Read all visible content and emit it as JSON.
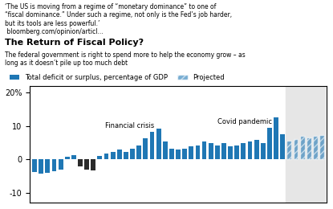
{
  "chart_data": {
    "type": "bar",
    "title": "The Return of Fiscal Policy?",
    "subtitle": "The federal government is right to spend more to help the economy grow – as\nlong as it doesn’t pile up too much debt",
    "categories": [
      null,
      null,
      null,
      null,
      null,
      null,
      null,
      null,
      null,
      null,
      null,
      null,
      null,
      null,
      null,
      null,
      null,
      null,
      null,
      null,
      null,
      null,
      null,
      null,
      null,
      null,
      null,
      null,
      null,
      null,
      null,
      null,
      null,
      null,
      null,
      null,
      null,
      null,
      null,
      null,
      null,
      null,
      null,
      null,
      null
    ],
    "series": [
      {
        "name": "Total deficit or surplus, percentage of GDP",
        "values": [
          -3.8,
          -4.2,
          -4.0,
          -3.6,
          -3.0,
          0.8,
          1.2,
          -2.2,
          -3.0,
          -3.3,
          1.0,
          1.8,
          2.2,
          2.8,
          2.2,
          3.2,
          4.2,
          6.2,
          8.2,
          9.2,
          5.2,
          3.2,
          3.0,
          3.2,
          3.8,
          4.2,
          5.2,
          4.8,
          4.2,
          4.8,
          3.8,
          4.2,
          4.8,
          5.2,
          5.8,
          4.8,
          9.5,
          12.5,
          7.5,
          null,
          null,
          null,
          null,
          null,
          null
        ],
        "colors": [
          "#1f77b4",
          "#1f77b4",
          "#1f77b4",
          "#1f77b4",
          "#1f77b4",
          "#1f77b4",
          "#1f77b4",
          "#2a2a2a",
          "#2a2a2a",
          "#2a2a2a",
          "#1f77b4",
          "#1f77b4",
          "#1f77b4",
          "#1f77b4",
          "#1f77b4",
          "#1f77b4",
          "#1f77b4",
          "#1f77b4",
          "#1f77b4",
          "#1f77b4",
          "#1f77b4",
          "#1f77b4",
          "#1f77b4",
          "#1f77b4",
          "#1f77b4",
          "#1f77b4",
          "#1f77b4",
          "#1f77b4",
          "#1f77b4",
          "#1f77b4",
          "#1f77b4",
          "#1f77b4",
          "#1f77b4",
          "#1f77b4",
          "#1f77b4",
          "#1f77b4",
          "#1f77b4",
          "#1f77b4",
          "#1f77b4",
          null,
          null,
          null,
          null,
          null,
          null
        ]
      },
      {
        "name": "Projected",
        "values": [
          null,
          null,
          null,
          null,
          null,
          null,
          null,
          null,
          null,
          null,
          null,
          null,
          null,
          null,
          null,
          null,
          null,
          null,
          null,
          null,
          null,
          null,
          null,
          null,
          null,
          null,
          null,
          null,
          null,
          null,
          null,
          null,
          null,
          null,
          null,
          null,
          null,
          null,
          null,
          5.5,
          6.0,
          7.0,
          6.5,
          7.0,
          7.2
        ]
      }
    ],
    "ylim": [
      -13,
      22
    ],
    "yticks": [
      -10,
      0,
      10,
      {
        "value": 20,
        "label": "20%"
      }
    ],
    "grid": false,
    "legend": "upper left",
    "tick_labels": "y",
    "annotations": [
      {
        "text": "‘The US is moving from a regime of “monetary dominance” to one of"
      },
      {
        "text": "“fiscal dominance.” Under such a regime, not only is the Fed’s job harder,"
      },
      {
        "text": "but its tools are less powerful.’"
      },
      {
        "text": " bloomberg.com/opinion/articl..."
      },
      {
        "text": "Financial crisis",
        "index": 18
      },
      {
        "text": "Covid pandemic",
        "index": 36
      }
    ]
  }
}
